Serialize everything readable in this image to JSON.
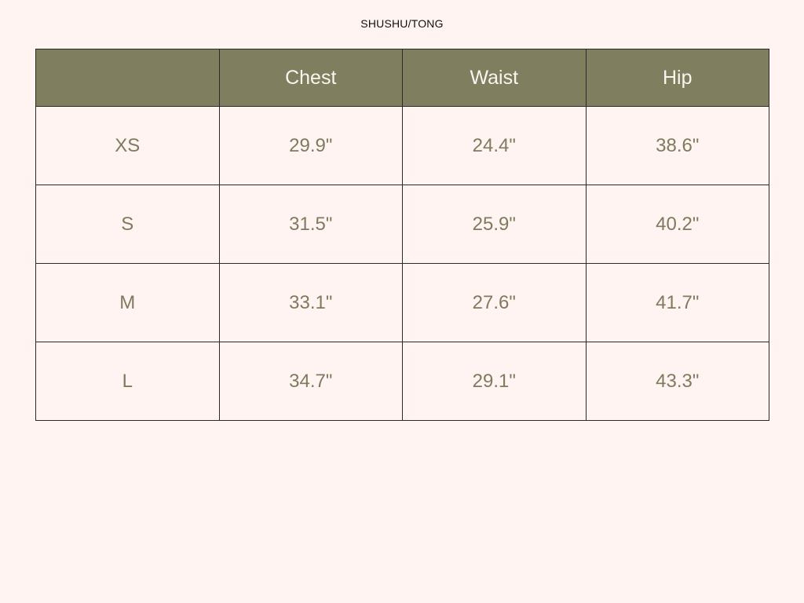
{
  "brand": "SHUSHU/TONG",
  "colors": {
    "header_bg": "#7f7f5f",
    "background": "#fff4f2",
    "text": "#7e7b5e"
  },
  "table": {
    "headers": [
      "",
      "Chest",
      "Waist",
      "Hip"
    ],
    "rows": [
      [
        "XS",
        "29.9\"",
        "24.4\"",
        "38.6\""
      ],
      [
        "S",
        "31.5\"",
        "25.9\"",
        "40.2\""
      ],
      [
        "M",
        "33.1\"",
        "27.6\"",
        "41.7\""
      ],
      [
        "L",
        "34.7\"",
        "29.1\"",
        "43.3\""
      ]
    ]
  }
}
